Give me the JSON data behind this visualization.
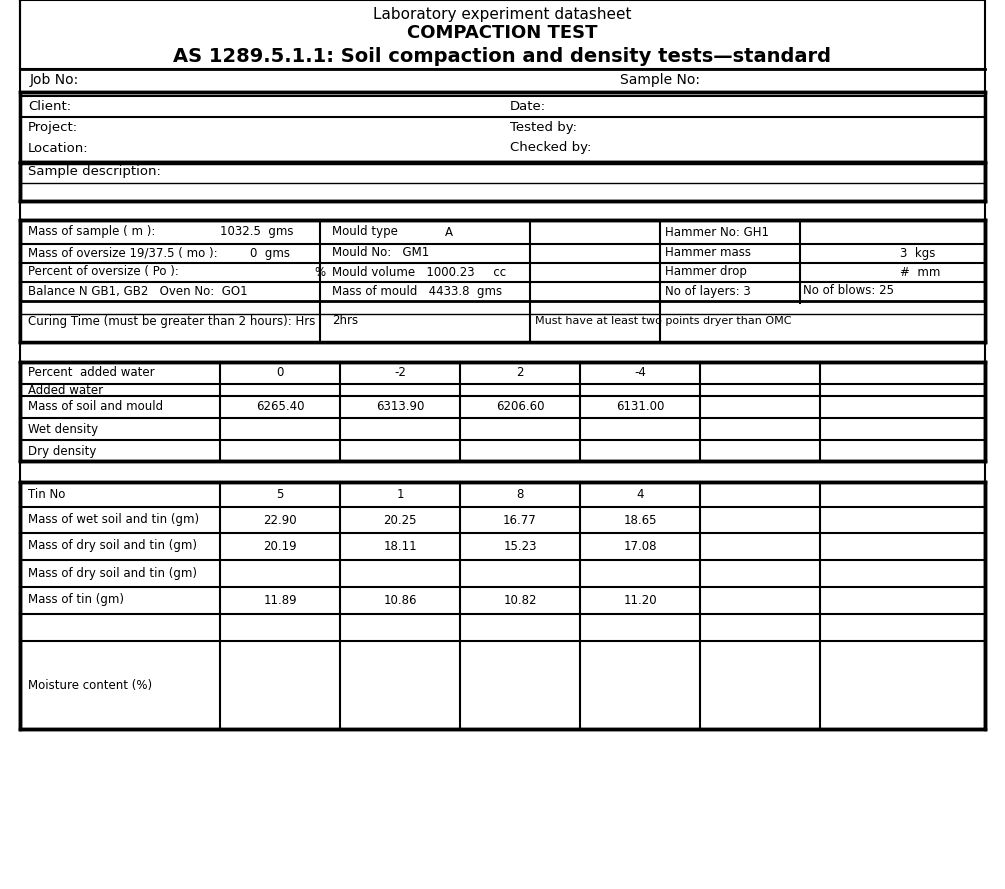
{
  "title_line1": "Laboratory experiment datasheet",
  "title_line2": "COMPACTION TEST",
  "title_line3": "AS 1289.5.1.1: Soil compaction and density tests—standard",
  "bg_color": "#ffffff",
  "border_color": "#000000",
  "header_section": {
    "job_no": "Job No:",
    "sample_no": "Sample No:"
  },
  "info_rows": [
    [
      "Client:",
      "",
      "Date:",
      ""
    ],
    [
      "Project:",
      "",
      "Tested by:",
      ""
    ],
    [
      "Location:",
      "",
      "Checked by:",
      ""
    ]
  ],
  "sample_desc": "Sample description:",
  "params_rows": [
    [
      "Mass of sample ( m ):",
      "1032.5  gms",
      "Mould type",
      "A",
      "Hammer No: GH1",
      ""
    ],
    [
      "Mass of oversize 19/37.5 ( mo ):",
      "0  gms",
      "Mould No:",
      "GM1",
      "Hammer mass",
      "3  kgs"
    ],
    [
      "Percent of oversize ( Po ):",
      "%",
      "Mould volume",
      "1000.23     cc",
      "Hammer drop",
      "#  mm"
    ],
    [
      "Balance N GB1, GB2   Oven No:  GO1",
      "",
      "Mass of mould",
      "4433.8  gms",
      "No of layers: 3",
      "No of blows: 25"
    ],
    [
      "Curing Time (must be greater than 2 hours): Hrs",
      "2hrs",
      "",
      "",
      "Must have at least two points dryer than OMC",
      ""
    ]
  ],
  "compaction_header": [
    "Percent  added water",
    "0",
    "-2",
    "2",
    "-4",
    "",
    ""
  ],
  "compaction_rows": [
    [
      "Added water",
      "",
      "",
      "",
      "",
      "",
      ""
    ],
    [
      "Mass of soil and mould",
      "6265.40",
      "6313.90",
      "6206.60",
      "6131.00",
      "",
      ""
    ],
    [
      "Wet density",
      "",
      "",
      "",
      "",
      "",
      ""
    ],
    [
      "Dry density",
      "",
      "",
      "",
      "",
      "",
      ""
    ]
  ],
  "moisture_section": {
    "header": [
      "Tin No",
      "5",
      "1",
      "8",
      "4",
      "",
      ""
    ],
    "rows": [
      [
        "Mass of wet soil and tin (gm)",
        "22.90",
        "20.25",
        "16.77",
        "18.65",
        "",
        ""
      ],
      [
        "Mass of dry soil and tin (gm)",
        "20.19",
        "18.11",
        "15.23",
        "17.08",
        "",
        ""
      ],
      [
        "Mass of dry soil and tin (gm)",
        "",
        "",
        "",
        "",
        "",
        ""
      ],
      [
        "Mass of tin (gm)",
        "11.89",
        "10.86",
        "10.82",
        "11.20",
        "",
        ""
      ],
      [
        "Moisture content (%)",
        "",
        "",
        "",
        "",
        "",
        ""
      ]
    ]
  }
}
